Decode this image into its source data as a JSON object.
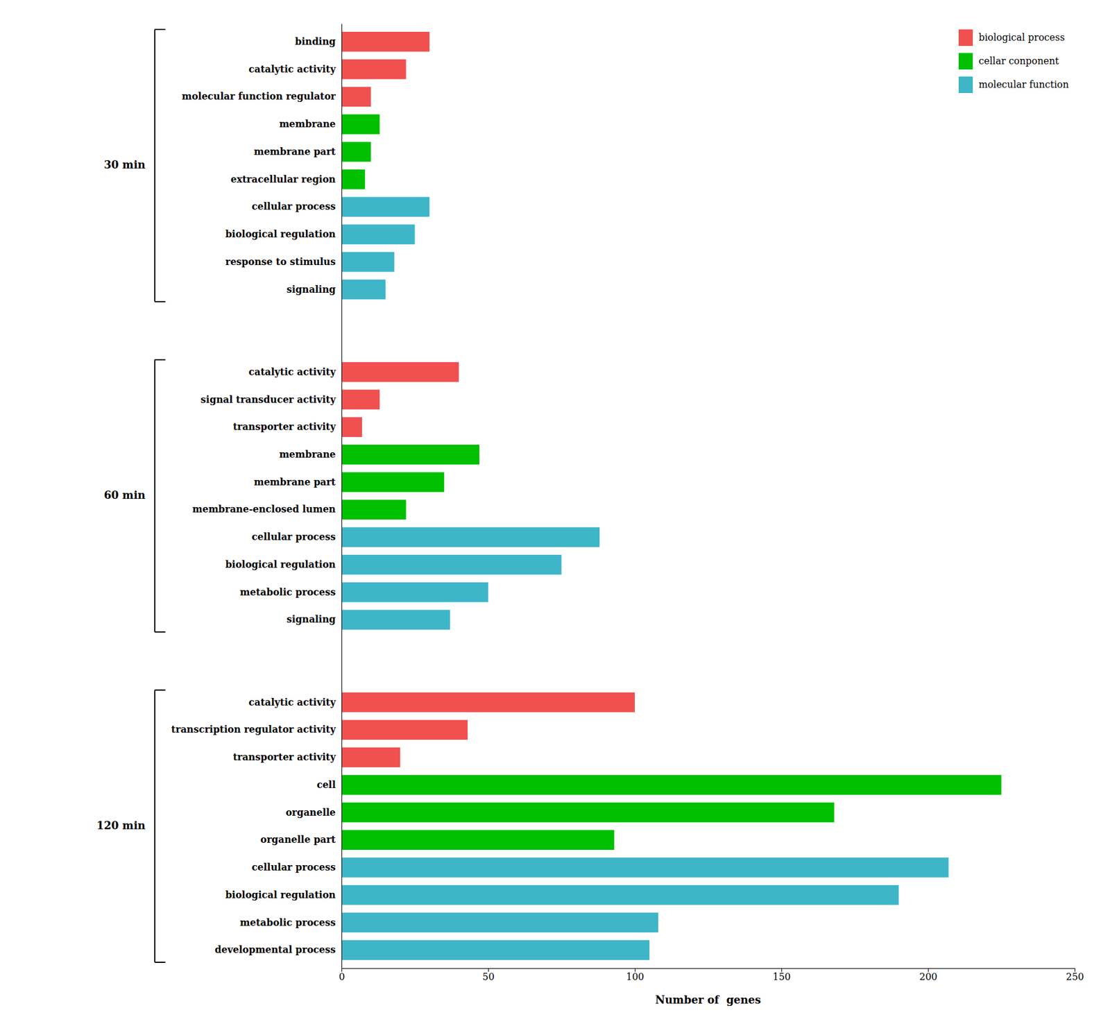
{
  "chart_data": {
    "type": "bar",
    "orientation": "horizontal",
    "xlabel": "Number of  genes",
    "categories": [
      "binding",
      "catalytic activity",
      "molecular function regulator",
      "membrane",
      "membrane part",
      "extracellular region",
      "cellular process",
      "biological regulation",
      "response to stimulus",
      "signaling",
      "catalytic activity",
      "signal transducer activity",
      "transporter activity",
      "membrane",
      "membrane part",
      "membrane-enclosed lumen",
      "cellular process",
      "biological regulation",
      "metabolic process",
      "signaling",
      "catalytic activity",
      "transcription regulator activity",
      "transporter activity",
      "cell",
      "organelle",
      "organelle part",
      "cellular process",
      "biological regulation",
      "metabolic process",
      "developmental process"
    ],
    "series": [
      {
        "name": "biological process",
        "color": "#F05050",
        "values": [
          30,
          22,
          10,
          null,
          null,
          null,
          null,
          null,
          null,
          null,
          40,
          13,
          7,
          null,
          null,
          null,
          null,
          null,
          null,
          null,
          100,
          43,
          20,
          null,
          null,
          null,
          null,
          null,
          null,
          null
        ]
      },
      {
        "name": "cellar conponent",
        "color": "#00C000",
        "values": [
          null,
          null,
          null,
          13,
          10,
          8,
          null,
          null,
          null,
          null,
          null,
          null,
          null,
          47,
          35,
          22,
          null,
          null,
          null,
          null,
          null,
          null,
          null,
          225,
          168,
          93,
          null,
          null,
          null,
          null
        ]
      },
      {
        "name": "molecular function",
        "color": "#3EB6C8",
        "values": [
          null,
          null,
          null,
          null,
          null,
          null,
          30,
          25,
          18,
          15,
          null,
          null,
          null,
          null,
          null,
          null,
          88,
          75,
          50,
          37,
          null,
          null,
          null,
          null,
          null,
          null,
          207,
          190,
          108,
          105
        ]
      }
    ],
    "annotations": [
      "30 min",
      "60 min",
      "120 min"
    ],
    "xlim": [
      0,
      250
    ],
    "xticks": [
      0,
      50,
      100,
      150,
      200,
      250
    ],
    "grid": false,
    "legend": "upper right"
  }
}
